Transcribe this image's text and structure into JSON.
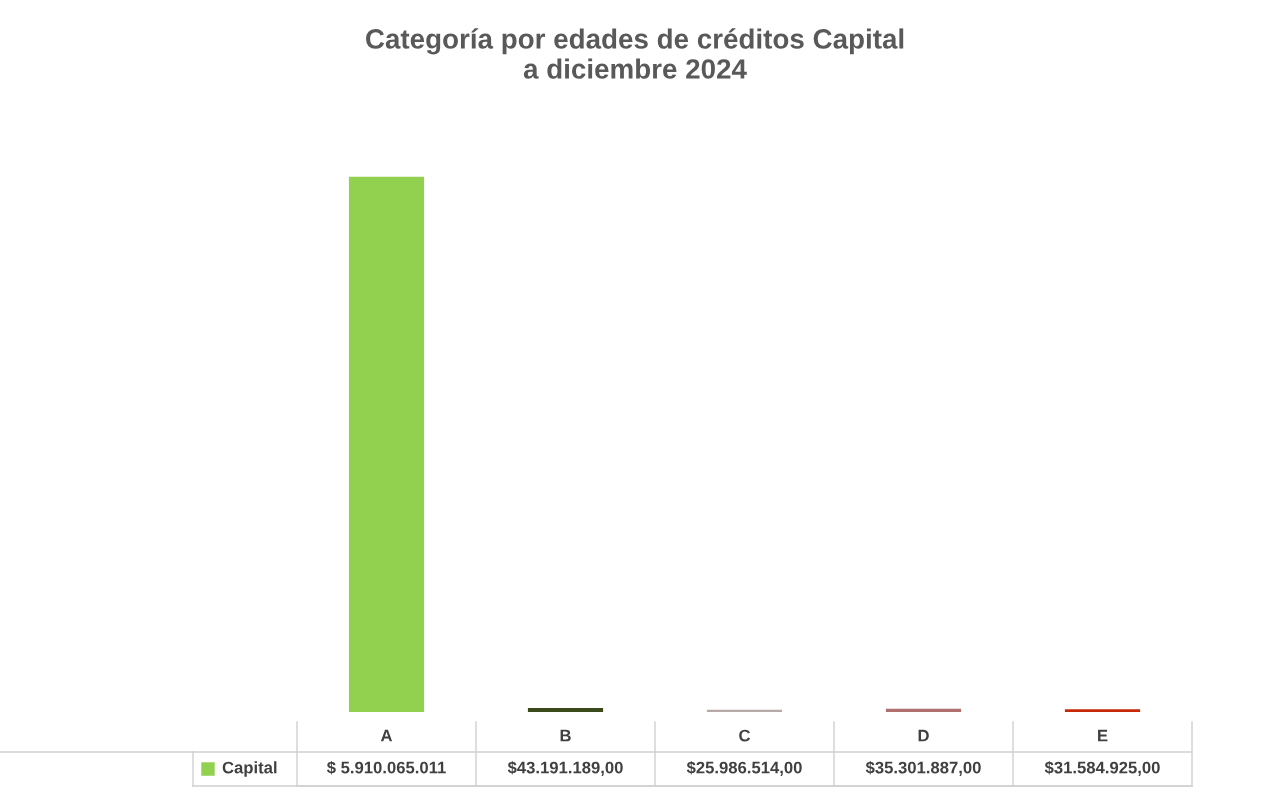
{
  "chart_data": {
    "type": "bar",
    "title": "Categoría por edades de créditos Capital\na diciembre 2024",
    "categories": [
      "A",
      "B",
      "C",
      "D",
      "E"
    ],
    "series": [
      {
        "name": "Capital",
        "color": "#92d050",
        "colors": [
          "#92d050",
          "#3b4a1a",
          "#b8a9a9",
          "#b07070",
          "#c8280a"
        ],
        "values": [
          5910065011,
          43191189.0,
          25986514.0,
          35301887.0,
          31584925.0
        ],
        "value_labels": [
          "$ 5.910.065.011",
          "$43.191.189,00",
          "$25.986.514,00",
          "$35.301.887,00",
          "$31.584.925,00"
        ]
      }
    ]
  }
}
